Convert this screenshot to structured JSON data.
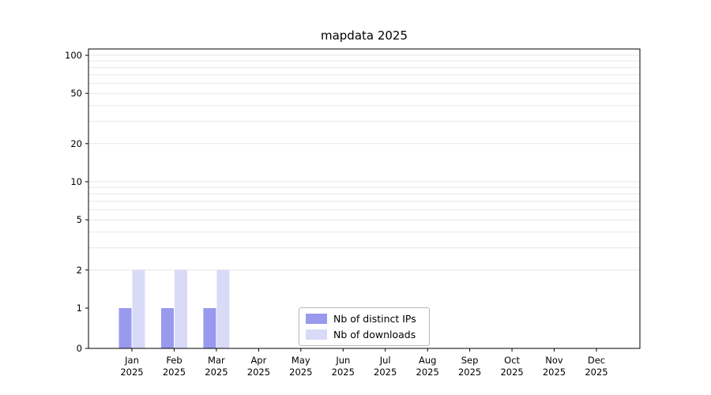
{
  "chart_data": {
    "type": "bar",
    "title": "mapdata 2025",
    "categories": [
      {
        "month": "Jan",
        "year": "2025"
      },
      {
        "month": "Feb",
        "year": "2025"
      },
      {
        "month": "Mar",
        "year": "2025"
      },
      {
        "month": "Apr",
        "year": "2025"
      },
      {
        "month": "May",
        "year": "2025"
      },
      {
        "month": "Jun",
        "year": "2025"
      },
      {
        "month": "Jul",
        "year": "2025"
      },
      {
        "month": "Aug",
        "year": "2025"
      },
      {
        "month": "Sep",
        "year": "2025"
      },
      {
        "month": "Oct",
        "year": "2025"
      },
      {
        "month": "Nov",
        "year": "2025"
      },
      {
        "month": "Dec",
        "year": "2025"
      }
    ],
    "series": [
      {
        "name": "Nb of distinct IPs",
        "color": "#9999ee",
        "values": [
          1,
          1,
          1,
          0,
          0,
          0,
          0,
          0,
          0,
          0,
          0,
          0
        ]
      },
      {
        "name": "Nb of downloads",
        "color": "#d9daf8",
        "values": [
          2,
          2,
          2,
          0,
          0,
          0,
          0,
          0,
          0,
          0,
          0,
          0
        ]
      }
    ],
    "y_axis": {
      "ticks": [
        0,
        1,
        2,
        5,
        10,
        20,
        50,
        100
      ],
      "scale": "symlog",
      "range": [
        0,
        100
      ]
    },
    "x_axis": {
      "tick_style": "two-line month/year"
    },
    "grid": {
      "horizontal": true,
      "minor_lines": [
        2,
        3,
        4,
        5,
        6,
        7,
        8,
        9,
        10,
        20,
        30,
        40,
        50,
        60,
        70,
        80,
        90,
        100
      ],
      "color": "#e7e7e7"
    },
    "legend": {
      "position": "bottom-center"
    },
    "axis_color": "#000000",
    "background": "#ffffff"
  }
}
